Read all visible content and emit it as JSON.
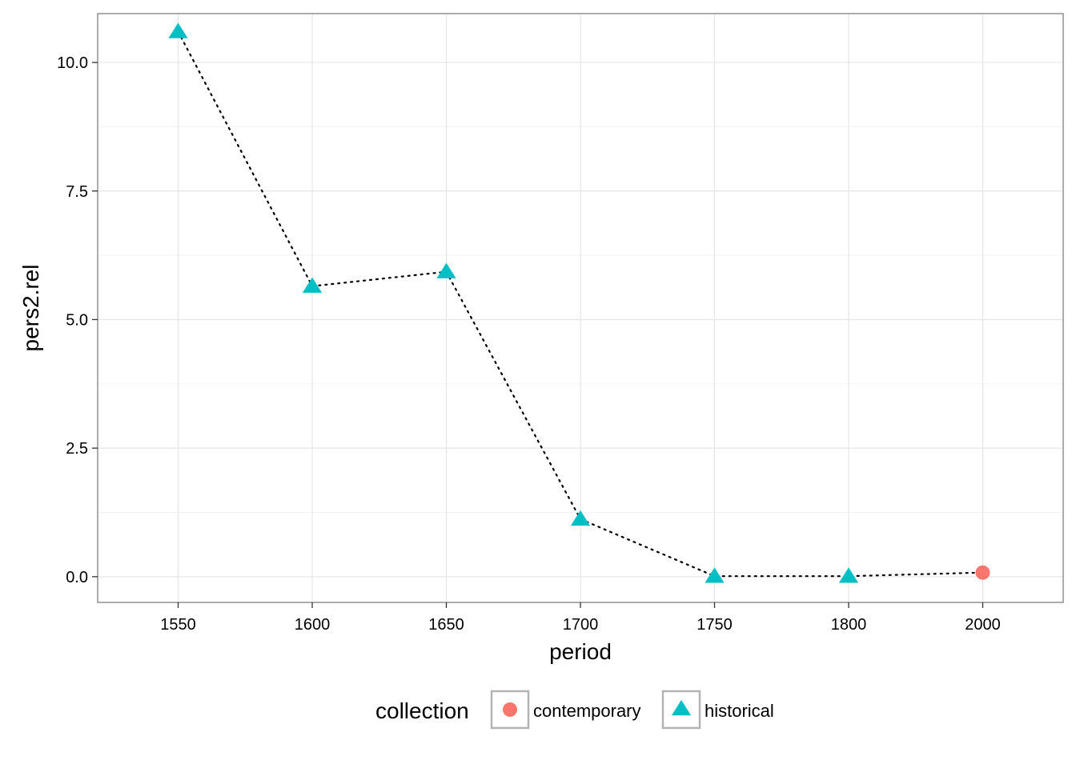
{
  "chart_data": {
    "type": "scatter",
    "title": "",
    "xlabel": "period",
    "ylabel": "pers2.rel",
    "x_categories": [
      "1550",
      "1600",
      "1650",
      "1700",
      "1750",
      "1800",
      "2000"
    ],
    "y_ticks": [
      0.0,
      2.5,
      5.0,
      7.5,
      10.0
    ],
    "y_tick_labels": [
      "0.0",
      "2.5",
      "5.0",
      "7.5",
      "10.0"
    ],
    "ylim": [
      -0.5,
      10.95
    ],
    "grid": true,
    "connecting_line": "dotted",
    "legend": {
      "title": "collection",
      "position": "bottom",
      "entries": [
        {
          "label": "contemporary",
          "shape": "circle",
          "color": "#F8766D"
        },
        {
          "label": "historical",
          "shape": "triangle",
          "color": "#00BFC4"
        }
      ]
    },
    "points": [
      {
        "x": "1550",
        "y": 10.6,
        "collection": "historical"
      },
      {
        "x": "1600",
        "y": 5.65,
        "collection": "historical"
      },
      {
        "x": "1650",
        "y": 5.93,
        "collection": "historical"
      },
      {
        "x": "1700",
        "y": 1.12,
        "collection": "historical"
      },
      {
        "x": "1750",
        "y": 0.01,
        "collection": "historical"
      },
      {
        "x": "1800",
        "y": 0.01,
        "collection": "historical"
      },
      {
        "x": "2000",
        "y": 0.08,
        "collection": "contemporary"
      }
    ],
    "colors": {
      "contemporary": "#F8766D",
      "historical": "#00BFC4",
      "line": "#000000",
      "panel_border": "#7F7F7F",
      "grid_major": "#E5E5E5",
      "grid_minor": "#F2F2F2"
    }
  }
}
